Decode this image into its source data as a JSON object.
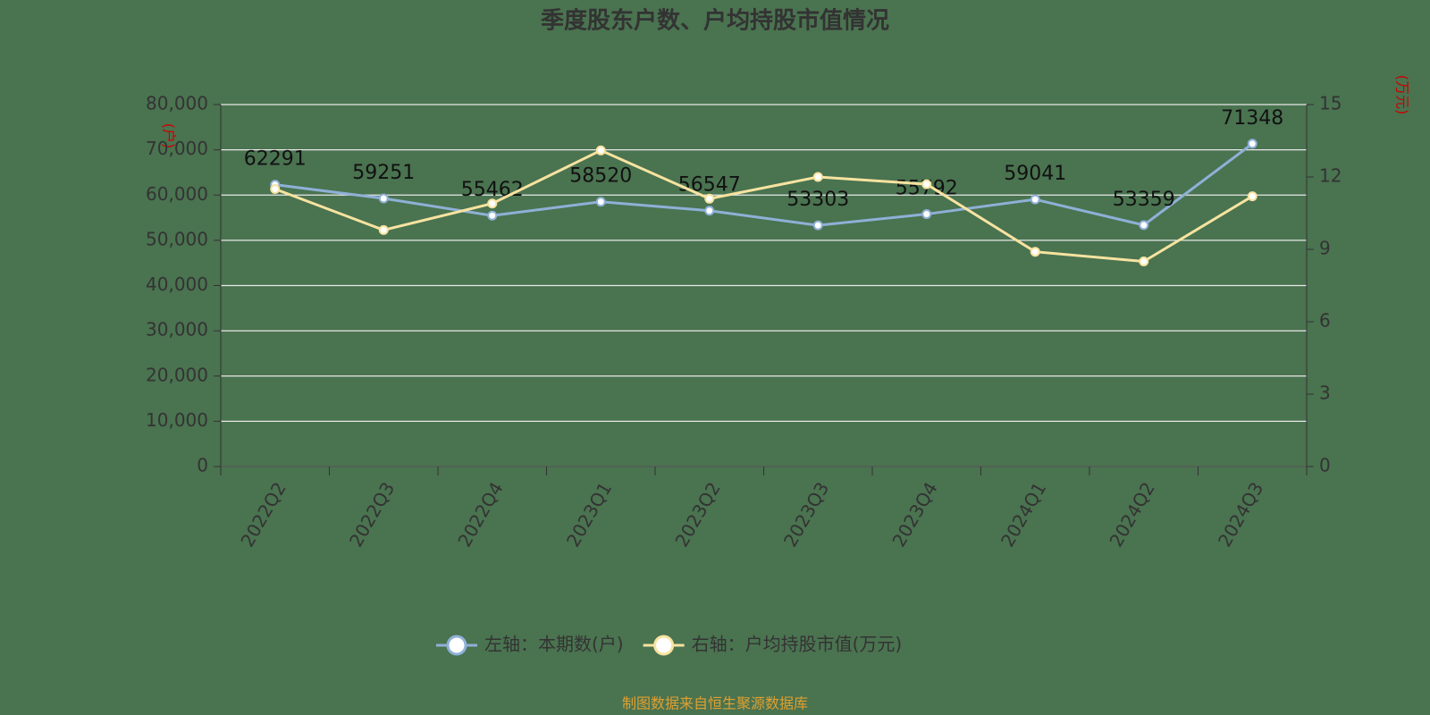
{
  "chart_data": {
    "type": "line",
    "title": "季度股东户数、户均持股市值情况",
    "y_label": "(户)",
    "y2_label": "(万元)",
    "source": "制图数据来自恒生聚源数据库",
    "categories": [
      "2022Q2",
      "2022Q3",
      "2022Q4",
      "2023Q1",
      "2023Q2",
      "2023Q3",
      "2023Q4",
      "2024Q1",
      "2024Q2",
      "2024Q3"
    ],
    "series": [
      {
        "name": "左轴：本期数(户)",
        "color": "#8fb0d6",
        "values": [
          62291,
          59251,
          55462,
          58520,
          56547,
          53303,
          55792,
          59041,
          53359,
          71348
        ],
        "show_labels": true
      },
      {
        "name": "右轴：户均持股市值(万元)",
        "color": "#f7e3a0",
        "axis": "y2",
        "values": [
          11.5,
          9.8,
          10.9,
          13.1,
          11.1,
          12.0,
          11.7,
          8.9,
          8.5,
          11.2
        ],
        "show_labels": false
      }
    ],
    "ylim": [
      0,
      80000
    ],
    "yticks": [
      0,
      {
        "value": 10000,
        "label": "10,000"
      },
      {
        "value": 20000,
        "label": "20,000"
      },
      {
        "value": 30000,
        "label": "30,000"
      },
      {
        "value": 40000,
        "label": "40,000"
      },
      {
        "value": 50000,
        "label": "50,000"
      },
      {
        "value": 60000,
        "label": "60,000"
      },
      {
        "value": 70000,
        "label": "70,000"
      },
      {
        "value": 80000,
        "label": "80,000"
      }
    ],
    "y2lim": [
      0,
      15
    ],
    "y2ticks": [
      0,
      3,
      6,
      9,
      12,
      15
    ],
    "grid": true
  }
}
